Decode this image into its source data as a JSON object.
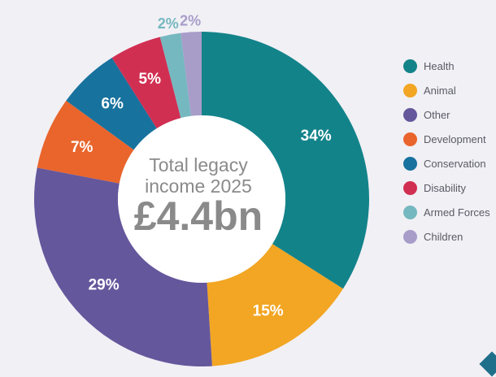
{
  "center": {
    "line1": "Total legacy",
    "line2": "income 2025",
    "total": "£4.4bn"
  },
  "chart_data": {
    "type": "pie",
    "donut": true,
    "title": "",
    "legend_position": "right",
    "slices": [
      {
        "name": "Health",
        "value": 34,
        "label": "34%",
        "color": "#13838a"
      },
      {
        "name": "Animal",
        "value": 15,
        "label": "15%",
        "color": "#f2a623"
      },
      {
        "name": "Other",
        "value": 29,
        "label": "29%",
        "color": "#65579c"
      },
      {
        "name": "Development",
        "value": 7,
        "label": "7%",
        "color": "#e9652c"
      },
      {
        "name": "Conservation",
        "value": 6,
        "label": "6%",
        "color": "#18729e"
      },
      {
        "name": "Disability",
        "value": 5,
        "label": "5%",
        "color": "#d12f52"
      },
      {
        "name": "Armed Forces",
        "value": 2,
        "label": "2%",
        "color": "#76b8bf"
      },
      {
        "name": "Children",
        "value": 2,
        "label": "2%",
        "color": "#a89dc9"
      }
    ]
  },
  "legend": {
    "items": [
      {
        "label": "Health",
        "color": "#13838a"
      },
      {
        "label": "Animal",
        "color": "#f2a623"
      },
      {
        "label": "Other",
        "color": "#65579c"
      },
      {
        "label": "Development",
        "color": "#e9652c"
      },
      {
        "label": "Conservation",
        "color": "#18729e"
      },
      {
        "label": "Disability",
        "color": "#d12f52"
      },
      {
        "label": "Armed Forces",
        "color": "#76b8bf"
      },
      {
        "label": "Children",
        "color": "#a89dc9"
      }
    ]
  }
}
